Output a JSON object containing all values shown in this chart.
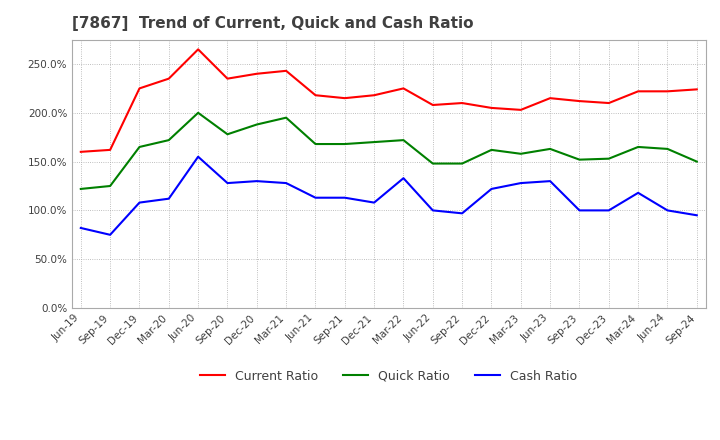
{
  "title": "[7867]  Trend of Current, Quick and Cash Ratio",
  "x_labels": [
    "Jun-19",
    "Sep-19",
    "Dec-19",
    "Mar-20",
    "Jun-20",
    "Sep-20",
    "Dec-20",
    "Mar-21",
    "Jun-21",
    "Sep-21",
    "Dec-21",
    "Mar-22",
    "Jun-22",
    "Sep-22",
    "Dec-22",
    "Mar-23",
    "Jun-23",
    "Sep-23",
    "Dec-23",
    "Mar-24",
    "Jun-24",
    "Sep-24"
  ],
  "current_ratio": [
    160,
    162,
    225,
    235,
    265,
    235,
    240,
    243,
    218,
    215,
    218,
    225,
    208,
    210,
    205,
    203,
    215,
    212,
    210,
    222,
    222,
    224
  ],
  "quick_ratio": [
    122,
    125,
    165,
    172,
    200,
    178,
    188,
    195,
    168,
    168,
    170,
    172,
    148,
    148,
    162,
    158,
    163,
    152,
    153,
    165,
    163,
    150
  ],
  "cash_ratio": [
    82,
    75,
    108,
    112,
    155,
    128,
    130,
    128,
    113,
    113,
    108,
    133,
    100,
    97,
    122,
    128,
    130,
    100,
    100,
    118,
    100,
    95
  ],
  "ylim": [
    0,
    275
  ],
  "yticks": [
    0,
    50,
    100,
    150,
    200,
    250
  ],
  "line_colors": {
    "current": "#ff0000",
    "quick": "#008000",
    "cash": "#0000ff"
  },
  "legend_labels": [
    "Current Ratio",
    "Quick Ratio",
    "Cash Ratio"
  ],
  "background_color": "#ffffff",
  "grid_color": "#aaaaaa",
  "title_color": "#404040",
  "title_fontsize": 11
}
